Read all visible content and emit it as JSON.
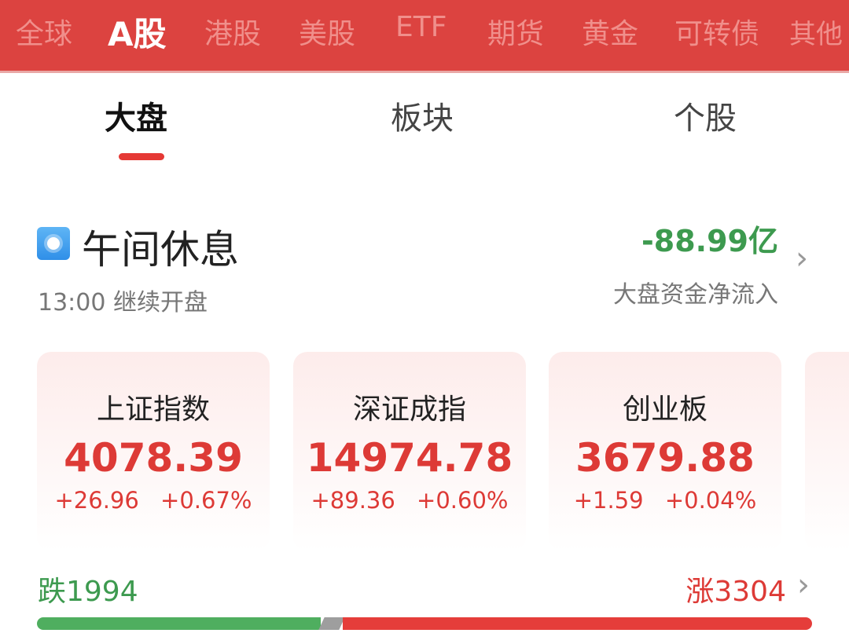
{
  "market_tabs": [
    "全球",
    "A股",
    "港股",
    "美股",
    "ETF",
    "期货",
    "黄金",
    "可转债",
    "其他"
  ],
  "active_market": "A股",
  "sub_tabs": [
    "大盘",
    "板块",
    "个股"
  ],
  "active_sub": "大盘",
  "status": {
    "icon": "sun-icon",
    "title": "午间休息",
    "subtitle": "13:00 继续开盘"
  },
  "fund_flow": {
    "value": "-88.99亿",
    "label": "大盘资金净流入"
  },
  "indices": [
    {
      "name": "上证指数",
      "value": "4078.39",
      "change": "+26.96",
      "pct": "+0.67%"
    },
    {
      "name": "深证成指",
      "value": "14974.78",
      "change": "+89.36",
      "pct": "+0.60%"
    },
    {
      "name": "创业板",
      "value": "3679.88",
      "change": "+1.59",
      "pct": "+0.04%"
    }
  ],
  "breadth": {
    "down_label": "跌1994",
    "up_label": "涨3304",
    "down": 1994,
    "up": 3304
  },
  "colors": {
    "header": "#dc4340",
    "up": "#dd3a36",
    "down": "#3d9a4f",
    "flat": "#9e9e9e"
  }
}
